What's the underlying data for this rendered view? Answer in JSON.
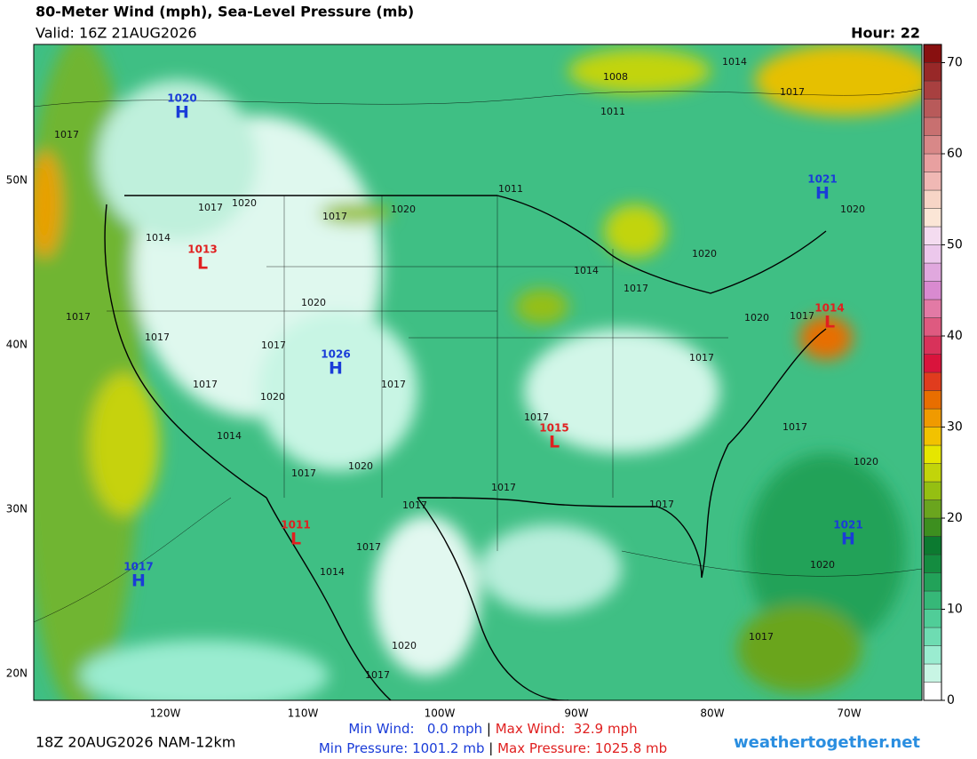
{
  "header": {
    "title": "80-Meter Wind (mph), Sea-Level Pressure (mb)",
    "valid": "Valid: 16Z 21AUG2026",
    "hour": "Hour: 22"
  },
  "map": {
    "lat_labels": [
      "50N",
      "40N",
      "30N",
      "20N"
    ],
    "lon_labels": [
      "120W",
      "110W",
      "100W",
      "90W",
      "80W",
      "70W"
    ],
    "highs": [
      {
        "pressure": "1020",
        "symbol": "H"
      },
      {
        "pressure": "1021",
        "symbol": "H"
      },
      {
        "pressure": "1026",
        "symbol": "H"
      },
      {
        "pressure": "1021",
        "symbol": "H"
      },
      {
        "pressure": "1017",
        "symbol": "H"
      }
    ],
    "lows": [
      {
        "pressure": "1013",
        "symbol": "L"
      },
      {
        "pressure": "1014",
        "symbol": "L"
      },
      {
        "pressure": "1015",
        "symbol": "L"
      },
      {
        "pressure": "1011",
        "symbol": "L"
      }
    ],
    "isobar_labels": [
      "1017",
      "1008",
      "1011",
      "1014",
      "1017",
      "1017",
      "1020",
      "1014",
      "1017",
      "1020",
      "1017",
      "1017",
      "1020",
      "1017",
      "1017",
      "1020",
      "1017",
      "1014",
      "1017",
      "1020",
      "1017",
      "1017",
      "1017",
      "1017",
      "1017",
      "1020",
      "1020",
      "1017",
      "1020",
      "1017",
      "1014",
      "1017",
      "1014",
      "1017",
      "1020",
      "1020",
      "1017",
      "1017",
      "1020",
      "1011"
    ]
  },
  "colorbar": {
    "range": [
      0,
      72
    ],
    "ticks": [
      0,
      10,
      20,
      30,
      40,
      50,
      60,
      70
    ],
    "colors": [
      "#ffffff",
      "#c8f5e4",
      "#9aecd0",
      "#6edcb2",
      "#50cd98",
      "#36b878",
      "#22a259",
      "#148c40",
      "#0c7a30",
      "#3d8f1f",
      "#6aa51e",
      "#95bf12",
      "#c2d40a",
      "#e6e600",
      "#f2c200",
      "#f09a00",
      "#e86e00",
      "#e03c1e",
      "#d9143c",
      "#d8325a",
      "#de5a80",
      "#e27aa5",
      "#d98ad0",
      "#e0a8de",
      "#ecc8ec",
      "#f4dcf0",
      "#fbe6d6",
      "#f7d5c6",
      "#f0b8b4",
      "#e8a0a0",
      "#d88888",
      "#c87070",
      "#b85a5a",
      "#a84040",
      "#982828",
      "#881010"
    ]
  },
  "footer": {
    "run": "18Z 20AUG2026 NAM-12km",
    "min_wind": "Min Wind:   0.0 mph",
    "max_wind": "Max Wind:  32.9 mph",
    "separator": "|",
    "min_pressure": "Min Pressure: 1001.2 mb",
    "max_pressure": "Max Pressure: 1025.8 mb",
    "site": "weathertogether.net"
  }
}
